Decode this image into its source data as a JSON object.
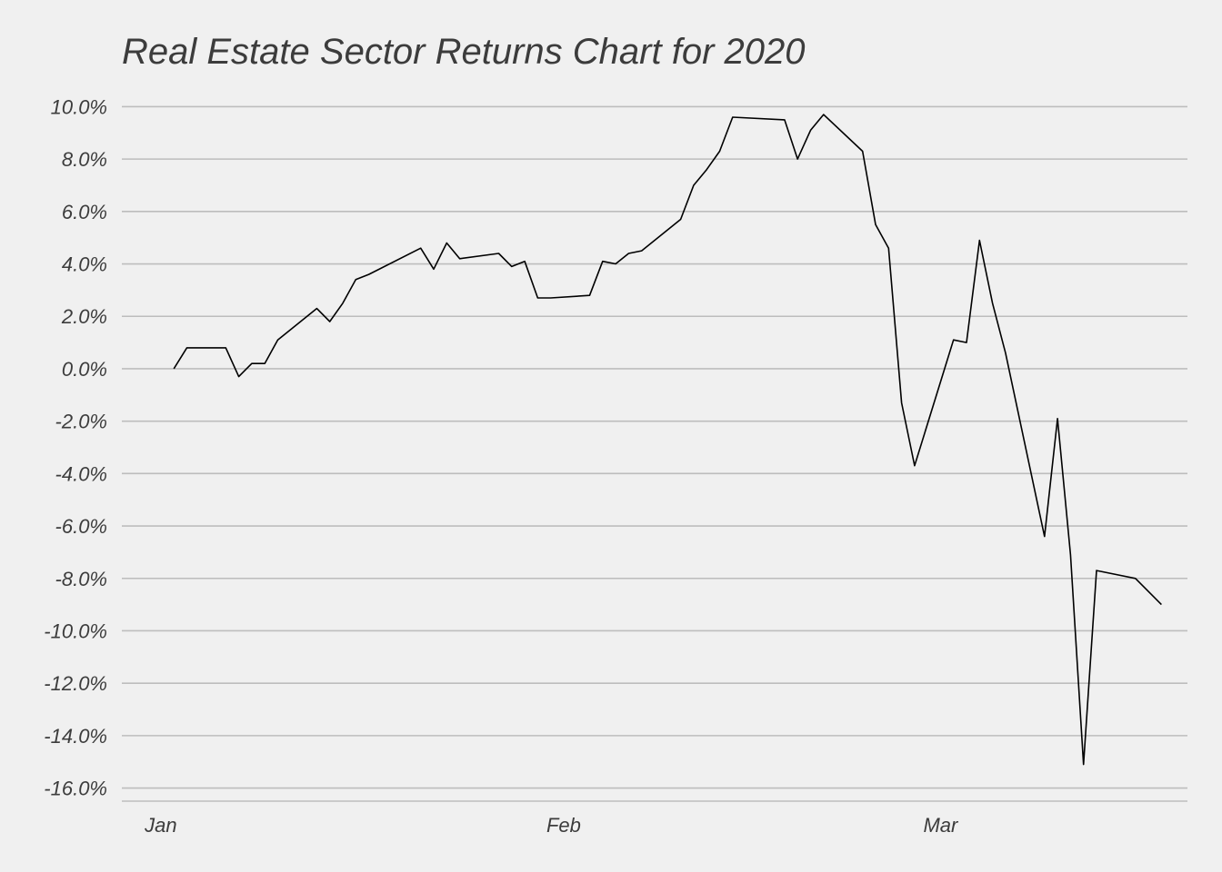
{
  "chart_data": {
    "type": "line",
    "title": "Real Estate Sector Returns Chart for 2020",
    "xlabel": "",
    "ylabel": "",
    "ylim": [
      -16.5,
      10.5
    ],
    "y_ticks": [
      10,
      8,
      6,
      4,
      2,
      0,
      -2,
      -4,
      -6,
      -8,
      -10,
      -12,
      -14,
      -16
    ],
    "y_tick_labels": [
      "10.0%",
      "8.0%",
      "6.0%",
      "4.0%",
      "2.0%",
      "0.0%",
      "-2.0%",
      "-4.0%",
      "-6.0%",
      "-8.0%",
      "-10.0%",
      "-12.0%",
      "-14.0%",
      "-16.0%"
    ],
    "x_tick_labels": [
      {
        "label": "Jan",
        "date": "2020-01-01"
      },
      {
        "label": "Feb",
        "date": "2020-02-01"
      },
      {
        "label": "Mar",
        "date": "2020-03-01"
      }
    ],
    "grid": true,
    "legend": "none",
    "colors": {
      "background": "#f0f0f0",
      "grid": "#bdbdbd",
      "text": "#3c3c3c",
      "line": "#000000"
    },
    "series": [
      {
        "dates": [
          "2020-01-02",
          "2020-01-03",
          "2020-01-06",
          "2020-01-07",
          "2020-01-08",
          "2020-01-09",
          "2020-01-10",
          "2020-01-13",
          "2020-01-14",
          "2020-01-15",
          "2020-01-16",
          "2020-01-17",
          "2020-01-21",
          "2020-01-22",
          "2020-01-23",
          "2020-01-24",
          "2020-01-27",
          "2020-01-28",
          "2020-01-29",
          "2020-01-30",
          "2020-01-31",
          "2020-02-03",
          "2020-02-04",
          "2020-02-05",
          "2020-02-06",
          "2020-02-07",
          "2020-02-10",
          "2020-02-11",
          "2020-02-12",
          "2020-02-13",
          "2020-02-14",
          "2020-02-18",
          "2020-02-19",
          "2020-02-20",
          "2020-02-21",
          "2020-02-24",
          "2020-02-25",
          "2020-02-26",
          "2020-02-27",
          "2020-02-28",
          "2020-03-02",
          "2020-03-03",
          "2020-03-04",
          "2020-03-05",
          "2020-03-06",
          "2020-03-09",
          "2020-03-10",
          "2020-03-11",
          "2020-03-12",
          "2020-03-13",
          "2020-03-16",
          "2020-03-17",
          "2020-03-18"
        ],
        "values": [
          0.0,
          0.8,
          0.8,
          -0.3,
          0.2,
          0.2,
          1.1,
          2.3,
          1.8,
          2.5,
          3.4,
          3.6,
          4.6,
          3.8,
          4.8,
          4.2,
          4.4,
          3.9,
          4.1,
          2.7,
          2.7,
          2.8,
          4.1,
          4.0,
          4.4,
          4.5,
          5.7,
          7.0,
          7.6,
          8.3,
          9.6,
          9.5,
          8.0,
          9.1,
          9.7,
          8.3,
          5.5,
          4.6,
          -1.3,
          -3.7,
          1.1,
          1.0,
          4.9,
          2.5,
          0.6,
          -6.4,
          -1.9,
          -7.1,
          -15.1,
          -7.7,
          -8.0,
          -8.5,
          -9.0
        ]
      }
    ]
  }
}
